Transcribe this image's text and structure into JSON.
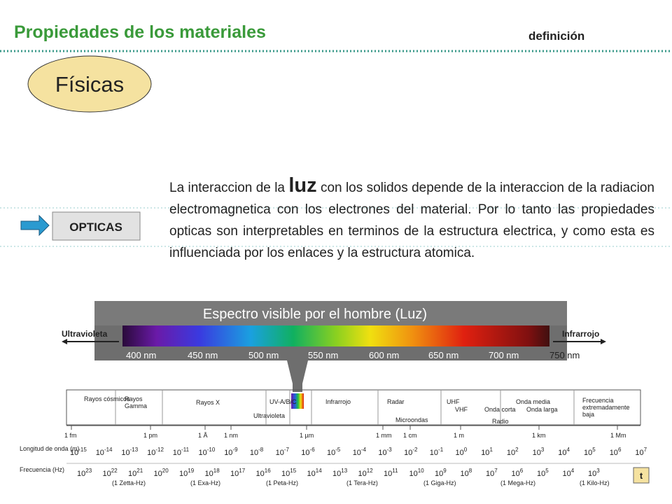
{
  "header": {
    "title": "Propiedades de los materiales",
    "subtitle": "definición"
  },
  "badge": "Físicas",
  "section": "OPTICAS",
  "paragraph": {
    "before": "La interaccion de la ",
    "emphasis": "luz",
    "after": " con los solidos depende de la interaccion de la radiacion electromagnetica con los electrones del material. Por lo tanto las propiedades opticas son interpretables en terminos de la estructura electrica, y como esta es influenciada por los enlaces y la estructura atomica."
  },
  "spectrum": {
    "title": "Espectro visible por el hombre (Luz)",
    "left": "Ultravioleta",
    "right": "Infrarrojo",
    "wavelengths": [
      "400 nm",
      "450 nm",
      "500 nm",
      "550 nm",
      "600 nm",
      "650 nm",
      "700 nm",
      "750 nm"
    ]
  },
  "regions": [
    "Rayos cósmicos",
    "Rayos Gamma",
    "Rayos X",
    "UV-A/B/C",
    "Ultravioleta",
    "Infrarrojo",
    "Radar",
    "Microondas",
    "UHF",
    "VHF",
    "Onda corta",
    "Onda media",
    "Onda larga",
    "Radio",
    "Frecuencia extremadamente baja"
  ],
  "scale_units": [
    "1 fm",
    "1 pm",
    "1 Å",
    "1 nm",
    "1 µm",
    "1 mm",
    "1 cm",
    "1 m",
    "1 km",
    "1 Mm"
  ],
  "wavelength_row": {
    "label": "Longitud de onda (m)",
    "base": "10",
    "exponents": [
      "-15",
      "-14",
      "-13",
      "-12",
      "-11",
      "-10",
      "-9",
      "-8",
      "-7",
      "-6",
      "-5",
      "-4",
      "-3",
      "-2",
      "-1",
      "0",
      "1",
      "2",
      "3",
      "4",
      "5",
      "6",
      "7"
    ]
  },
  "frequency_row": {
    "label": "Frecuencia (Hz)",
    "base": "10",
    "exponents": [
      "23",
      "22",
      "21",
      "20",
      "19",
      "18",
      "17",
      "16",
      "15",
      "14",
      "13",
      "12",
      "11",
      "10",
      "9",
      "8",
      "7",
      "6",
      "5",
      "4",
      "3"
    ]
  },
  "frequency_units": [
    "(1 Zetta-Hz)",
    "(1 Exa-Hz)",
    "(1 Peta-Hz)",
    "(1 Tera-Hz)",
    "(1 Giga-Hz)",
    "(1 Mega-Hz)",
    "(1 Kilo-Hz)"
  ],
  "nav_button": "t"
}
